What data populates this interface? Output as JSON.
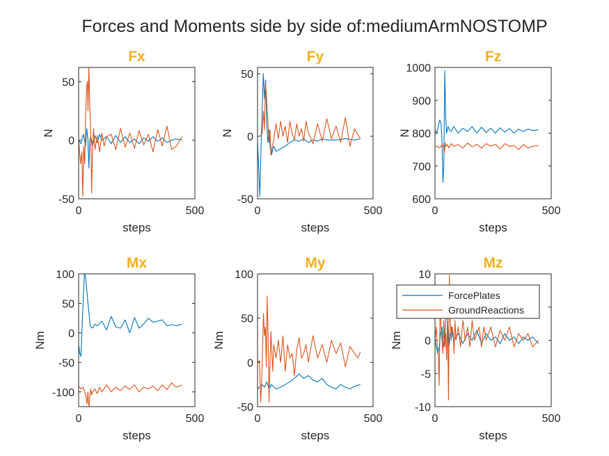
{
  "figure_title": "Forces and Moments side by side of:mediumArmNOSTOMP",
  "colors": {
    "ForcePlates": "#0072BD",
    "GroundReactions": "#D95319",
    "title": "#EDB120",
    "axis": "#262626"
  },
  "legend": {
    "entries": [
      "ForcePlates",
      "GroundReactions"
    ],
    "location": "inside Mz panel, upper-left"
  },
  "chart_data": [
    {
      "type": "line",
      "title": "Fx",
      "xlabel": "steps",
      "ylabel": "N",
      "xlim": [
        0,
        500
      ],
      "ylim": [
        -50,
        62
      ],
      "xticks": [
        0,
        500
      ],
      "yticks": [
        -50,
        0,
        50
      ],
      "series": [
        {
          "name": "ForcePlates",
          "x": [
            0,
            10,
            20,
            30,
            35,
            40,
            44,
            48,
            52,
            60,
            70,
            80,
            90,
            100,
            120,
            140,
            160,
            180,
            200,
            220,
            240,
            260,
            280,
            300,
            320,
            340,
            360,
            380,
            400,
            420,
            445
          ],
          "y": [
            0,
            -3,
            5,
            -5,
            10,
            0,
            -24,
            0,
            3,
            -5,
            4,
            -2,
            5,
            0,
            3,
            -3,
            4,
            -2,
            3,
            -2,
            1,
            -3,
            2,
            -1,
            3,
            -1,
            2,
            -2,
            0,
            1,
            0
          ]
        },
        {
          "name": "GroundReactions",
          "x": [
            0,
            8,
            14,
            18,
            22,
            26,
            30,
            34,
            38,
            40,
            44,
            48,
            52,
            56,
            60,
            64,
            70,
            80,
            90,
            100,
            110,
            120,
            140,
            160,
            180,
            200,
            220,
            240,
            260,
            280,
            300,
            320,
            340,
            360,
            380,
            400,
            420,
            445
          ],
          "y": [
            0,
            -20,
            -10,
            -48,
            -5,
            -20,
            20,
            45,
            50,
            25,
            62,
            30,
            5,
            -45,
            -5,
            10,
            -8,
            4,
            -10,
            6,
            -5,
            3,
            5,
            -8,
            10,
            -6,
            6,
            -7,
            8,
            -4,
            5,
            -10,
            9,
            -5,
            12,
            -8,
            -5,
            3
          ]
        }
      ]
    },
    {
      "type": "line",
      "title": "Fy",
      "xlabel": "steps",
      "ylabel": "N",
      "xlim": [
        0,
        500
      ],
      "ylim": [
        -50,
        55
      ],
      "xticks": [
        0,
        500
      ],
      "yticks": [
        -50,
        0,
        50
      ],
      "series": [
        {
          "name": "ForcePlates",
          "x": [
            0,
            5,
            10,
            15,
            20,
            25,
            30,
            35,
            40,
            45,
            50,
            55,
            60,
            70,
            80,
            100,
            120,
            140,
            160,
            180,
            200,
            220,
            240,
            260,
            280,
            300,
            340,
            380,
            420,
            445
          ],
          "y": [
            -5,
            -25,
            -48,
            -10,
            20,
            50,
            30,
            45,
            10,
            -5,
            5,
            -10,
            -15,
            -8,
            -12,
            -10,
            -8,
            -5,
            -3,
            -4,
            -2,
            -5,
            -3,
            -4,
            -2,
            -3,
            -3,
            -2,
            -3,
            -2
          ]
        },
        {
          "name": "GroundReactions",
          "x": [
            0,
            10,
            20,
            26,
            30,
            34,
            38,
            42,
            46,
            50,
            54,
            58,
            64,
            70,
            80,
            90,
            100,
            110,
            120,
            130,
            140,
            150,
            160,
            170,
            180,
            190,
            200,
            210,
            220,
            240,
            260,
            280,
            300,
            320,
            340,
            360,
            380,
            400,
            420,
            445
          ],
          "y": [
            0,
            0,
            2,
            20,
            5,
            42,
            35,
            20,
            8,
            -5,
            5,
            -15,
            -8,
            -3,
            10,
            -2,
            12,
            0,
            8,
            -5,
            12,
            2,
            -3,
            10,
            0,
            6,
            -4,
            12,
            3,
            -6,
            10,
            -4,
            14,
            -2,
            8,
            -5,
            15,
            -8,
            6,
            -2
          ]
        }
      ]
    },
    {
      "type": "line",
      "title": "Fz",
      "xlabel": "steps",
      "ylabel": "N",
      "xlim": [
        0,
        500
      ],
      "ylim": [
        600,
        1000
      ],
      "xticks": [
        0,
        500
      ],
      "yticks": [
        600,
        700,
        800,
        900,
        1000
      ],
      "series": [
        {
          "name": "ForcePlates",
          "x": [
            0,
            8,
            14,
            20,
            26,
            30,
            34,
            38,
            42,
            46,
            50,
            56,
            62,
            70,
            80,
            100,
            120,
            140,
            160,
            180,
            200,
            220,
            240,
            260,
            280,
            300,
            320,
            340,
            360,
            380,
            400,
            420,
            445
          ],
          "y": [
            810,
            800,
            820,
            840,
            830,
            780,
            650,
            700,
            990,
            850,
            800,
            820,
            810,
            805,
            820,
            800,
            815,
            805,
            820,
            800,
            818,
            802,
            815,
            800,
            816,
            803,
            814,
            800,
            812,
            805,
            812,
            808,
            810
          ]
        },
        {
          "name": "GroundReactions",
          "x": [
            0,
            10,
            20,
            30,
            36,
            40,
            44,
            48,
            54,
            60,
            70,
            80,
            100,
            120,
            140,
            160,
            180,
            200,
            220,
            240,
            260,
            280,
            300,
            320,
            340,
            360,
            380,
            400,
            420,
            445
          ],
          "y": [
            760,
            760,
            755,
            765,
            760,
            740,
            770,
            760,
            765,
            755,
            768,
            760,
            765,
            755,
            770,
            758,
            766,
            754,
            768,
            760,
            766,
            752,
            768,
            760,
            762,
            750,
            765,
            755,
            760,
            762
          ]
        }
      ]
    },
    {
      "type": "line",
      "title": "Mx",
      "xlabel": "steps",
      "ylabel": "Nm",
      "xlim": [
        0,
        500
      ],
      "ylim": [
        -125,
        100
      ],
      "xticks": [
        0,
        500
      ],
      "yticks": [
        -100,
        -50,
        0,
        50,
        100
      ],
      "series": [
        {
          "name": "ForcePlates",
          "x": [
            0,
            5,
            10,
            15,
            20,
            25,
            30,
            40,
            50,
            60,
            70,
            80,
            100,
            120,
            140,
            160,
            180,
            200,
            220,
            240,
            260,
            280,
            300,
            320,
            340,
            360,
            380,
            400,
            420,
            445
          ],
          "y": [
            -20,
            -35,
            -40,
            10,
            60,
            100,
            95,
            50,
            12,
            8,
            15,
            12,
            20,
            5,
            28,
            10,
            8,
            22,
            0,
            26,
            8,
            15,
            25,
            18,
            20,
            22,
            12,
            14,
            12,
            15
          ]
        },
        {
          "name": "GroundReactions",
          "x": [
            0,
            10,
            20,
            30,
            36,
            40,
            44,
            48,
            52,
            56,
            60,
            70,
            80,
            90,
            100,
            120,
            140,
            160,
            180,
            200,
            220,
            240,
            260,
            280,
            300,
            320,
            340,
            360,
            380,
            400,
            420,
            445
          ],
          "y": [
            -90,
            -95,
            -92,
            -105,
            -120,
            -100,
            -125,
            -110,
            -95,
            -105,
            -100,
            -95,
            -103,
            -92,
            -100,
            -88,
            -100,
            -92,
            -98,
            -90,
            -96,
            -88,
            -100,
            -92,
            -95,
            -90,
            -98,
            -88,
            -96,
            -85,
            -92,
            -88
          ]
        }
      ]
    },
    {
      "type": "line",
      "title": "My",
      "xlabel": "steps",
      "ylabel": "Nm",
      "xlim": [
        0,
        500
      ],
      "ylim": [
        -50,
        100
      ],
      "xticks": [
        0,
        500
      ],
      "yticks": [
        -50,
        0,
        50,
        100
      ],
      "series": [
        {
          "name": "ForcePlates",
          "x": [
            0,
            10,
            20,
            30,
            40,
            50,
            60,
            80,
            100,
            120,
            140,
            160,
            180,
            200,
            220,
            240,
            260,
            280,
            300,
            320,
            340,
            360,
            380,
            400,
            420,
            445
          ],
          "y": [
            -30,
            -28,
            -25,
            -28,
            -22,
            -30,
            -25,
            -30,
            -28,
            -25,
            -22,
            -18,
            -13,
            -18,
            -15,
            -20,
            -22,
            -18,
            -25,
            -28,
            -30,
            -25,
            -28,
            -30,
            -27,
            -25
          ]
        },
        {
          "name": "GroundReactions",
          "x": [
            0,
            8,
            14,
            18,
            22,
            26,
            30,
            34,
            38,
            42,
            46,
            50,
            54,
            58,
            62,
            66,
            70,
            80,
            90,
            100,
            110,
            120,
            130,
            140,
            150,
            160,
            170,
            180,
            190,
            200,
            210,
            220,
            240,
            260,
            280,
            300,
            320,
            340,
            360,
            380,
            400,
            420,
            435,
            445
          ],
          "y": [
            0,
            2,
            -45,
            -20,
            20,
            55,
            30,
            40,
            -5,
            75,
            25,
            -45,
            0,
            35,
            10,
            -10,
            20,
            5,
            25,
            0,
            30,
            -10,
            20,
            5,
            10,
            -15,
            15,
            28,
            5,
            10,
            20,
            0,
            30,
            5,
            20,
            0,
            25,
            10,
            22,
            -5,
            18,
            10,
            5,
            12
          ]
        }
      ]
    },
    {
      "type": "line",
      "title": "Mz",
      "xlabel": "steps",
      "ylabel": "Nm",
      "xlim": [
        0,
        500
      ],
      "ylim": [
        -10,
        10
      ],
      "xticks": [
        0,
        500
      ],
      "yticks": [
        -10,
        -5,
        0,
        5,
        10
      ],
      "series": [
        {
          "name": "ForcePlates",
          "x": [
            0,
            6,
            12,
            18,
            24,
            30,
            36,
            42,
            48,
            54,
            60,
            70,
            80,
            100,
            120,
            140,
            160,
            180,
            200,
            220,
            240,
            260,
            280,
            300,
            320,
            340,
            360,
            380,
            400,
            420,
            445
          ],
          "y": [
            0,
            -1,
            -2,
            -1,
            1,
            2,
            -1,
            0,
            5,
            3,
            -1,
            2,
            0,
            1,
            -0.5,
            1,
            0,
            1.5,
            -0.5,
            1,
            0,
            0.5,
            -0.5,
            1,
            0,
            0.5,
            -0.5,
            0.5,
            0,
            0.5,
            -0.5
          ]
        },
        {
          "name": "GroundReactions",
          "x": [
            0,
            6,
            10,
            14,
            18,
            22,
            26,
            30,
            34,
            38,
            42,
            46,
            50,
            54,
            58,
            62,
            66,
            70,
            74,
            78,
            82,
            86,
            90,
            100,
            110,
            120,
            130,
            140,
            150,
            160,
            170,
            180,
            190,
            200,
            210,
            220,
            240,
            260,
            280,
            300,
            320,
            340,
            360,
            380,
            400,
            420,
            445
          ],
          "y": [
            0,
            2,
            -1,
            -2,
            -6.8,
            5,
            2,
            0,
            -2,
            3,
            -1,
            1,
            -3,
            4,
            -9,
            9.8,
            3,
            0,
            2,
            1,
            -2,
            3,
            0,
            2,
            -1,
            3,
            0,
            2,
            -1,
            3,
            0,
            1,
            2,
            -1,
            2,
            0,
            2,
            -1,
            1.5,
            0,
            2,
            -1,
            1,
            0,
            1,
            -1,
            0
          ]
        }
      ]
    }
  ]
}
